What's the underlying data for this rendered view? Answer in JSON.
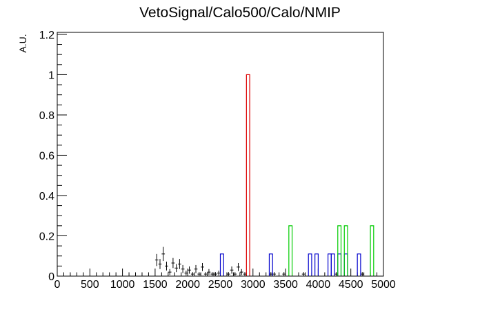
{
  "chart_data": {
    "type": "histogram",
    "title": "VetoSignal/Calo500/Calo/NMIP",
    "xlabel": "",
    "ylabel": "A.U.",
    "xlim": [
      0,
      5000
    ],
    "ylim": [
      0,
      1.21
    ],
    "x_ticks": [
      0,
      500,
      1000,
      1500,
      2000,
      2500,
      3000,
      3500,
      4000,
      4500,
      5000
    ],
    "y_ticks": [
      0,
      0.2,
      0.4,
      0.6,
      0.8,
      1,
      1.2
    ],
    "x_tick_labels": [
      "0",
      "500",
      "1000",
      "1500",
      "2000",
      "2500",
      "3000",
      "3500",
      "4000",
      "4500",
      "5000"
    ],
    "y_tick_labels": [
      "0",
      "0.2",
      "0.4",
      "0.6",
      "0.8",
      "1",
      "1.2"
    ],
    "bin_width": 50,
    "grid": false,
    "series": [
      {
        "style": "points",
        "color": "#000000",
        "points": [
          {
            "x": 1525,
            "y": 0.08,
            "err": 0.03
          },
          {
            "x": 1575,
            "y": 0.06,
            "err": 0.025
          },
          {
            "x": 1625,
            "y": 0.11,
            "err": 0.035
          },
          {
            "x": 1675,
            "y": 0.05,
            "err": 0.022
          },
          {
            "x": 1725,
            "y": 0.02,
            "err": 0.015
          },
          {
            "x": 1775,
            "y": 0.065,
            "err": 0.025
          },
          {
            "x": 1825,
            "y": 0.04,
            "err": 0.02
          },
          {
            "x": 1875,
            "y": 0.06,
            "err": 0.025
          },
          {
            "x": 1925,
            "y": 0.035,
            "err": 0.02
          },
          {
            "x": 1975,
            "y": 0.015,
            "err": 0.012
          },
          {
            "x": 2025,
            "y": 0.03,
            "err": 0.018
          },
          {
            "x": 2075,
            "y": 0.01,
            "err": 0.01
          },
          {
            "x": 2125,
            "y": 0.035,
            "err": 0.02
          },
          {
            "x": 2175,
            "y": 0.01,
            "err": 0.01
          },
          {
            "x": 2225,
            "y": 0.045,
            "err": 0.02
          },
          {
            "x": 2275,
            "y": 0.01,
            "err": 0.01
          },
          {
            "x": 2325,
            "y": 0.02,
            "err": 0.015
          },
          {
            "x": 2375,
            "y": 0.01,
            "err": 0.01
          },
          {
            "x": 2425,
            "y": 0.01,
            "err": 0.01
          },
          {
            "x": 2475,
            "y": 0.015,
            "err": 0.012
          },
          {
            "x": 2625,
            "y": 0.01,
            "err": 0.01
          },
          {
            "x": 2675,
            "y": 0.03,
            "err": 0.018
          },
          {
            "x": 2725,
            "y": 0.01,
            "err": 0.01
          },
          {
            "x": 2775,
            "y": 0.045,
            "err": 0.02
          },
          {
            "x": 2825,
            "y": 0.02,
            "err": 0.015
          },
          {
            "x": 2875,
            "y": 0.01,
            "err": 0.01
          },
          {
            "x": 3275,
            "y": 0.01,
            "err": 0.01
          },
          {
            "x": 3325,
            "y": 0.01,
            "err": 0.01
          },
          {
            "x": 3475,
            "y": 0.01,
            "err": 0.01
          },
          {
            "x": 3775,
            "y": 0.01,
            "err": 0.01
          },
          {
            "x": 4275,
            "y": 0.01,
            "err": 0.01
          },
          {
            "x": 4675,
            "y": 0.01,
            "err": 0.01
          }
        ]
      },
      {
        "style": "step",
        "color": "#0000cc",
        "bins": [
          {
            "x0": 2500,
            "x1": 2550,
            "y": 0.11
          },
          {
            "x0": 3250,
            "x1": 3300,
            "y": 0.11
          },
          {
            "x0": 3850,
            "x1": 3900,
            "y": 0.11
          },
          {
            "x0": 3950,
            "x1": 4000,
            "y": 0.11
          },
          {
            "x0": 4150,
            "x1": 4200,
            "y": 0.11
          },
          {
            "x0": 4200,
            "x1": 4250,
            "y": 0.11
          },
          {
            "x0": 4300,
            "x1": 4350,
            "y": 0.11
          },
          {
            "x0": 4400,
            "x1": 4450,
            "y": 0.11
          },
          {
            "x0": 4600,
            "x1": 4650,
            "y": 0.11
          }
        ]
      },
      {
        "style": "step",
        "color": "#dd0000",
        "bins": [
          {
            "x0": 2900,
            "x1": 2950,
            "y": 1.0
          }
        ]
      },
      {
        "style": "step",
        "color": "#00cc00",
        "bins": [
          {
            "x0": 3550,
            "x1": 3600,
            "y": 0.25
          },
          {
            "x0": 4300,
            "x1": 4350,
            "y": 0.25
          },
          {
            "x0": 4400,
            "x1": 4450,
            "y": 0.25
          },
          {
            "x0": 4800,
            "x1": 4850,
            "y": 0.25
          }
        ]
      }
    ]
  }
}
